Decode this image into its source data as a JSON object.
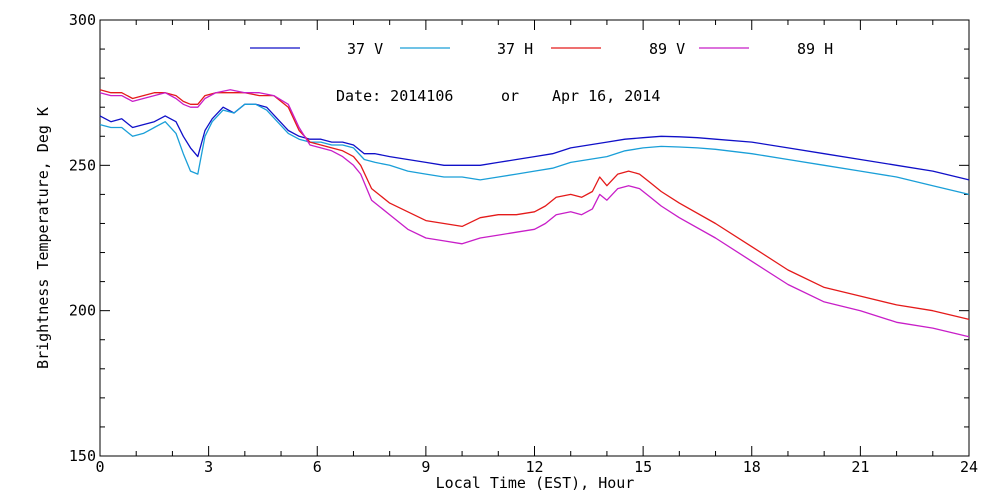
{
  "chart_data": {
    "type": "line",
    "title": "",
    "date_label": "Date: 2014106",
    "or_label": "or",
    "date_alt": "Apr 16, 2014",
    "xlabel": "Local Time (EST), Hour",
    "ylabel": "Brightness Temperature, Deg K",
    "xlim": [
      0,
      24
    ],
    "ylim": [
      150,
      300
    ],
    "xticks": [
      0,
      3,
      6,
      9,
      12,
      15,
      18,
      21,
      24
    ],
    "yticks": [
      150,
      200,
      250,
      300
    ],
    "grid": false,
    "legend_position": "top",
    "series": [
      {
        "name": "37 V",
        "color": "#1010c8",
        "x": [
          0,
          0.3,
          0.6,
          0.9,
          1.2,
          1.5,
          1.8,
          2.1,
          2.3,
          2.5,
          2.7,
          2.9,
          3.1,
          3.4,
          3.7,
          4.0,
          4.3,
          4.6,
          4.9,
          5.2,
          5.5,
          5.8,
          6.1,
          6.4,
          6.7,
          7.0,
          7.3,
          7.6,
          8,
          8.5,
          9,
          9.5,
          10,
          10.5,
          11,
          11.5,
          12,
          12.5,
          13,
          13.5,
          14,
          14.5,
          15,
          15.5,
          16,
          16.5,
          17,
          18,
          19,
          20,
          21,
          22,
          23,
          24
        ],
        "y": [
          267,
          265,
          266,
          263,
          264,
          265,
          267,
          265,
          260,
          256,
          253,
          262,
          266,
          270,
          268,
          271,
          271,
          270,
          266,
          262,
          260,
          259,
          259,
          258,
          258,
          257,
          254,
          254,
          253,
          252,
          251,
          250,
          250,
          250,
          251,
          252,
          253,
          254,
          256,
          257,
          258,
          259,
          259.5,
          260,
          259.8,
          259.5,
          259,
          258,
          256,
          254,
          252,
          250,
          248,
          245
        ]
      },
      {
        "name": "37 H",
        "color": "#1a9fd8",
        "x": [
          0,
          0.3,
          0.6,
          0.9,
          1.2,
          1.5,
          1.8,
          2.1,
          2.3,
          2.5,
          2.7,
          2.9,
          3.1,
          3.4,
          3.7,
          4.0,
          4.3,
          4.6,
          4.9,
          5.2,
          5.5,
          5.8,
          6.1,
          6.4,
          6.7,
          7.0,
          7.3,
          7.6,
          8,
          8.5,
          9,
          9.5,
          10,
          10.5,
          11,
          11.5,
          12,
          12.5,
          13,
          13.5,
          14,
          14.5,
          15,
          15.5,
          16,
          16.5,
          17,
          18,
          19,
          20,
          21,
          22,
          23,
          24
        ],
        "y": [
          264,
          263,
          263,
          260,
          261,
          263,
          265,
          261,
          254,
          248,
          247,
          260,
          265,
          269,
          268,
          271,
          271,
          269,
          265,
          261,
          259,
          258,
          258,
          257,
          257,
          256,
          252,
          251,
          250,
          248,
          247,
          246,
          246,
          245,
          246,
          247,
          248,
          249,
          251,
          252,
          253,
          255,
          256,
          256.5,
          256.3,
          256,
          255.5,
          254,
          252,
          250,
          248,
          246,
          243,
          240
        ]
      },
      {
        "name": "89 V",
        "color": "#e41a1a",
        "x": [
          0,
          0.3,
          0.6,
          0.9,
          1.2,
          1.5,
          1.8,
          2.1,
          2.3,
          2.5,
          2.7,
          2.9,
          3.2,
          3.6,
          4.0,
          4.4,
          4.8,
          5.2,
          5.5,
          5.8,
          6.1,
          6.4,
          6.7,
          7.0,
          7.2,
          7.5,
          8,
          8.5,
          9,
          9.5,
          10,
          10.5,
          11,
          11.5,
          12,
          12.3,
          12.6,
          13,
          13.3,
          13.6,
          13.8,
          14.0,
          14.3,
          14.6,
          14.9,
          15.2,
          15.5,
          16,
          17,
          18,
          19,
          20,
          21,
          22,
          23,
          24
        ],
        "y": [
          276,
          275,
          275,
          273,
          274,
          275,
          275,
          274,
          272,
          271,
          271,
          274,
          275,
          275,
          275,
          274,
          274,
          270,
          262,
          258,
          257,
          256,
          255,
          253,
          250,
          242,
          237,
          234,
          231,
          230,
          229,
          232,
          233,
          233,
          234,
          236,
          239,
          240,
          239,
          241,
          246,
          243,
          247,
          248,
          247,
          244,
          241,
          237,
          230,
          222,
          214,
          208,
          205,
          202,
          200,
          197
        ]
      },
      {
        "name": "89 H",
        "color": "#c81ec8",
        "x": [
          0,
          0.3,
          0.6,
          0.9,
          1.2,
          1.5,
          1.8,
          2.1,
          2.3,
          2.5,
          2.7,
          2.9,
          3.2,
          3.6,
          4.0,
          4.4,
          4.8,
          5.2,
          5.5,
          5.8,
          6.1,
          6.4,
          6.7,
          7.0,
          7.2,
          7.5,
          8,
          8.5,
          9,
          9.5,
          10,
          10.5,
          11,
          11.5,
          12,
          12.3,
          12.6,
          13,
          13.3,
          13.6,
          13.8,
          14.0,
          14.3,
          14.6,
          14.9,
          15.2,
          15.5,
          16,
          17,
          18,
          19,
          20,
          21,
          22,
          23,
          24
        ],
        "y": [
          275,
          274,
          274,
          272,
          273,
          274,
          275,
          273,
          271,
          270,
          270,
          273,
          275,
          276,
          275,
          275,
          274,
          271,
          263,
          257,
          256,
          255,
          253,
          250,
          247,
          238,
          233,
          228,
          225,
          224,
          223,
          225,
          226,
          227,
          228,
          230,
          233,
          234,
          233,
          235,
          240,
          238,
          242,
          243,
          242,
          239,
          236,
          232,
          225,
          217,
          209,
          203,
          200,
          196,
          194,
          191
        ]
      }
    ]
  }
}
